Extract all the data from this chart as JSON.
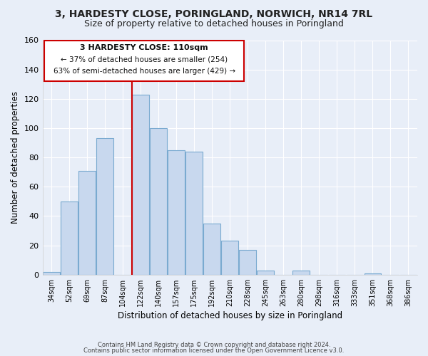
{
  "title": "3, HARDESTY CLOSE, PORINGLAND, NORWICH, NR14 7RL",
  "subtitle": "Size of property relative to detached houses in Poringland",
  "xlabel": "Distribution of detached houses by size in Poringland",
  "ylabel": "Number of detached properties",
  "bar_color": "#c8d8ee",
  "bar_edge_color": "#7aaad0",
  "categories": [
    "34sqm",
    "52sqm",
    "69sqm",
    "87sqm",
    "104sqm",
    "122sqm",
    "140sqm",
    "157sqm",
    "175sqm",
    "192sqm",
    "210sqm",
    "228sqm",
    "245sqm",
    "263sqm",
    "280sqm",
    "298sqm",
    "316sqm",
    "333sqm",
    "351sqm",
    "368sqm",
    "386sqm"
  ],
  "values": [
    2,
    50,
    71,
    93,
    0,
    123,
    100,
    85,
    84,
    35,
    23,
    17,
    3,
    0,
    3,
    0,
    0,
    0,
    1,
    0,
    0
  ],
  "vline_x_idx": 5,
  "vline_color": "#cc0000",
  "ylim": [
    0,
    160
  ],
  "yticks": [
    0,
    20,
    40,
    60,
    80,
    100,
    120,
    140,
    160
  ],
  "annotation_title": "3 HARDESTY CLOSE: 110sqm",
  "annotation_line1": "← 37% of detached houses are smaller (254)",
  "annotation_line2": "63% of semi-detached houses are larger (429) →",
  "annotation_box_color": "#ffffff",
  "annotation_box_edge": "#cc0000",
  "footer1": "Contains HM Land Registry data © Crown copyright and database right 2024.",
  "footer2": "Contains public sector information licensed under the Open Government Licence v3.0.",
  "background_color": "#e8eef8",
  "plot_bg_color": "#e8eef8",
  "title_fontsize": 10,
  "subtitle_fontsize": 9,
  "grid_color": "#ffffff"
}
